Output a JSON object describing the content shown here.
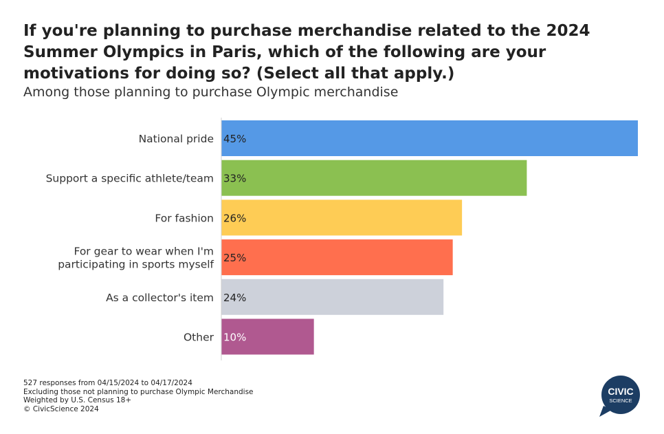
{
  "title": "If you're planning to purchase merchandise related to the 2024 Summer Olympics in Paris, which of the following are your motivations for doing so? (Select all that apply.)",
  "subtitle": "Among those planning to purchase Olympic merchandise",
  "chart_data": {
    "type": "bar",
    "orientation": "horizontal",
    "categories": [
      [
        "National pride"
      ],
      [
        "Support a specific athlete/team"
      ],
      [
        "For fashion"
      ],
      [
        "For gear to wear when I'm",
        "participating in sports myself"
      ],
      [
        "As a collector's item"
      ],
      [
        "Other"
      ]
    ],
    "values": [
      45,
      33,
      26,
      25,
      24,
      10
    ],
    "labels": [
      "45%",
      "33%",
      "26%",
      "25%",
      "24%",
      "10%"
    ],
    "colors": [
      "#5599e6",
      "#8bc051",
      "#fecc55",
      "#ff6f4e",
      "#cdd1da",
      "#b05990"
    ],
    "xlim": [
      0,
      45
    ],
    "grid": false,
    "legend": "none"
  },
  "footer": {
    "line1": "527 responses from 04/15/2024 to 04/17/2024",
    "line2": "Excluding those not planning to purchase Olympic Merchandise",
    "line3": "Weighted by U.S. Census 18+",
    "line4": "© CivicScience 2024"
  },
  "logo": {
    "line1": "CIVIC",
    "line2": "SCIENCE",
    "color": "#1c3d63"
  }
}
